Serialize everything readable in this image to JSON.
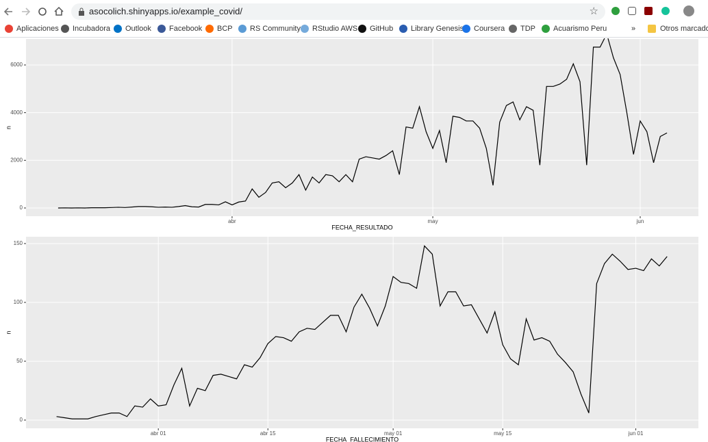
{
  "browser": {
    "url": "asocolich.shinyapps.io/example_covid/",
    "bookmarks": [
      "Aplicaciones",
      "Incubadora",
      "Outlook",
      "Facebook",
      "BCP",
      "RS Community",
      "RStudio AWS",
      "GitHub",
      "Library Genesis",
      "Coursera",
      "TDP",
      "Acuarismo Peru"
    ],
    "more": "»",
    "other_bookmarks": "Otros marcadores"
  },
  "chart_data": [
    {
      "type": "line",
      "x_label": "FECHA_RESULTADO",
      "y_label": "n",
      "color": "#000000",
      "grid": true,
      "values": [
        0,
        5,
        0,
        5,
        0,
        10,
        10,
        10,
        20,
        30,
        20,
        40,
        60,
        60,
        50,
        30,
        40,
        30,
        60,
        100,
        50,
        40,
        150,
        150,
        130,
        260,
        130,
        250,
        290,
        800,
        450,
        650,
        1050,
        1100,
        850,
        1050,
        1400,
        750,
        1300,
        1050,
        1400,
        1350,
        1100,
        1400,
        1100,
        2050,
        2150,
        2100,
        2050,
        2200,
        2400,
        1400,
        3400,
        3350,
        4250,
        3200,
        2500,
        3250,
        1900,
        3850,
        3800,
        3650,
        3650,
        3350,
        2500,
        950,
        3600,
        4300,
        4450,
        3700,
        4250,
        4100,
        1800,
        5100,
        5100,
        5200,
        5400,
        6050,
        5300,
        1800,
        6750,
        6750,
        7300,
        6300,
        5600,
        4000,
        2250,
        3650,
        3200,
        1900,
        3000,
        3150
      ],
      "xlim": [
        -4.8,
        95.7
      ],
      "xticks": [
        {
          "value": 26,
          "label": "abr"
        },
        {
          "value": 56,
          "label": "may"
        },
        {
          "value": 87,
          "label": "jun"
        }
      ],
      "ylim": [
        -345,
        7090
      ],
      "yticks": [
        0,
        2000,
        4000,
        6000
      ]
    },
    {
      "type": "line",
      "x_label": "FECHA_FALLECIMIENTO",
      "y_label": "n",
      "color": "#000000",
      "grid": true,
      "values": [
        3,
        2,
        1,
        1,
        1,
        3,
        4.5,
        6,
        6,
        3,
        12,
        11,
        18,
        12,
        13,
        30,
        44,
        12,
        27,
        25,
        38,
        39,
        37,
        35,
        47,
        45,
        53,
        65,
        71,
        70,
        67,
        75,
        78,
        77,
        83,
        89,
        89,
        75,
        96,
        107,
        95,
        80,
        97,
        122,
        117,
        116,
        112,
        148,
        141,
        97,
        109,
        109,
        97,
        98,
        86,
        74,
        92,
        64,
        52,
        47,
        86,
        68,
        70,
        67,
        56,
        49,
        41,
        22,
        6,
        116,
        133,
        141,
        135,
        128,
        129,
        127,
        137,
        131,
        139
      ],
      "xlim": [
        -3.9,
        82.0
      ],
      "xticks": [
        {
          "value": 13,
          "label": "abr 01"
        },
        {
          "value": 27,
          "label": "abr 15"
        },
        {
          "value": 43,
          "label": "may 01"
        },
        {
          "value": 57,
          "label": "may 15"
        },
        {
          "value": 74,
          "label": "jun 01"
        }
      ],
      "ylim": [
        -7,
        155.8
      ],
      "yticks": [
        0,
        50,
        100,
        150
      ]
    }
  ]
}
